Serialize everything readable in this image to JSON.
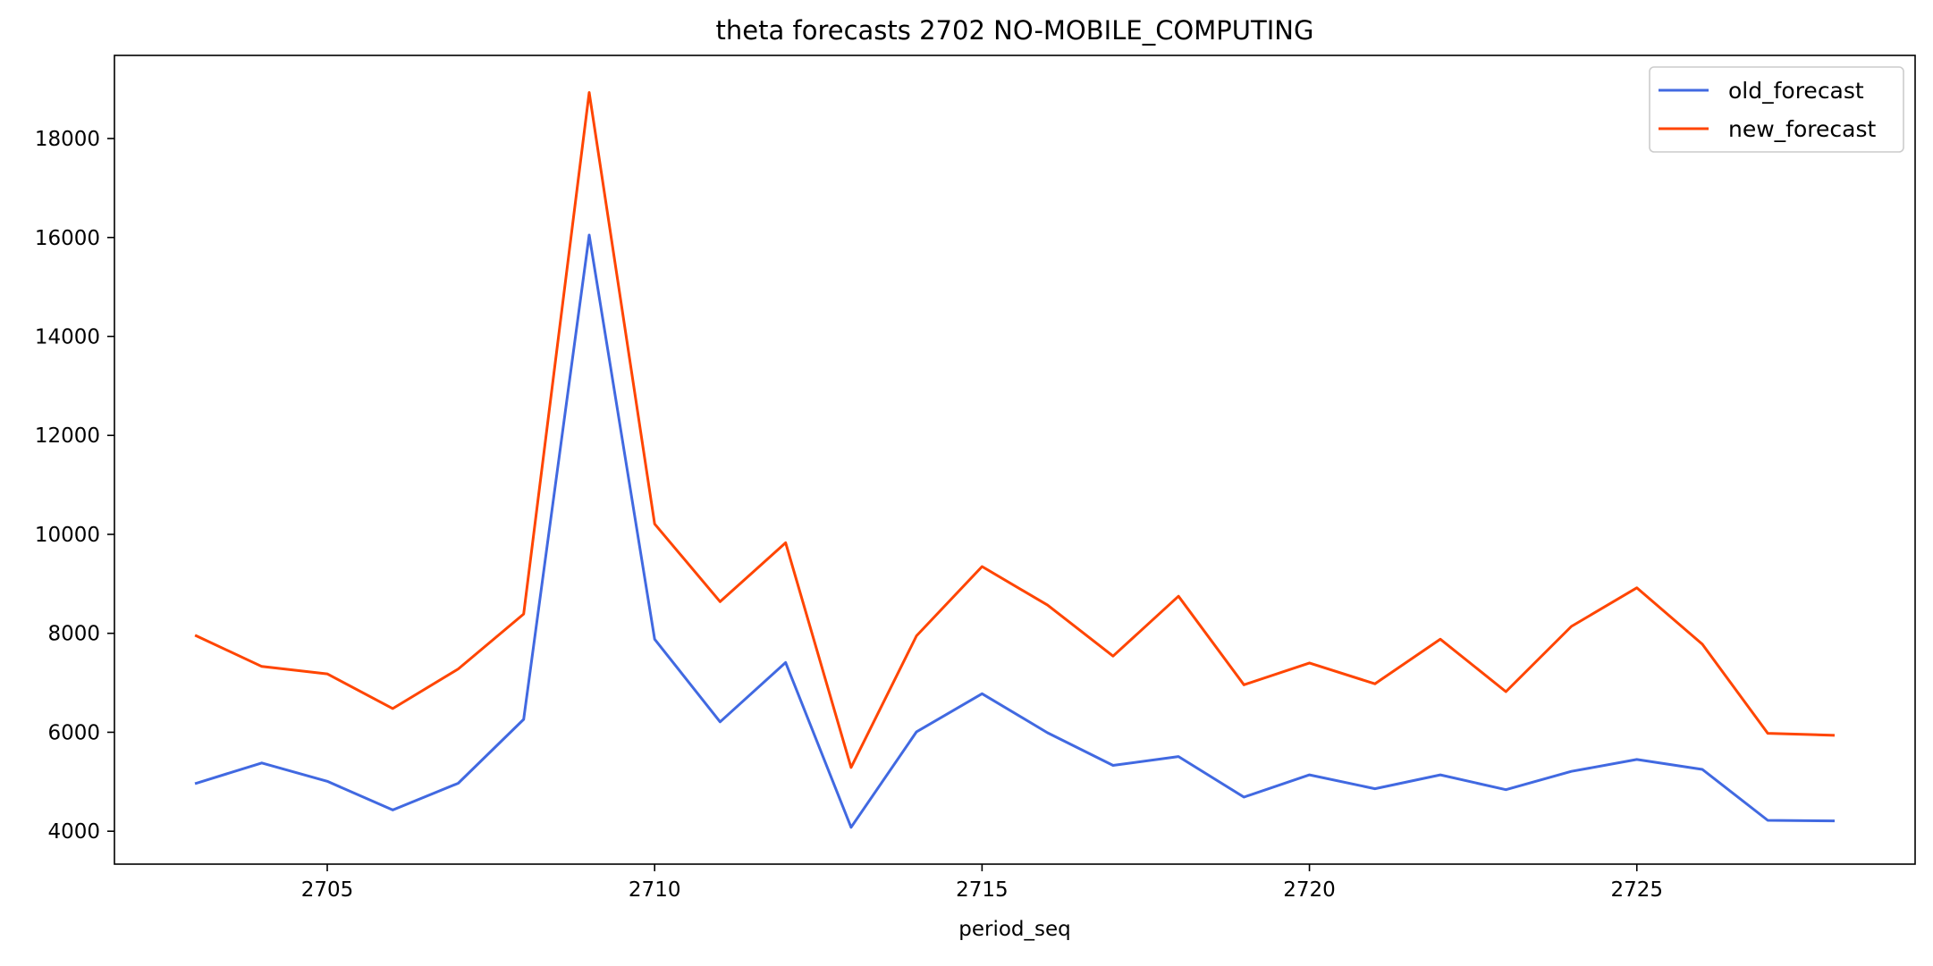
{
  "chart_data": {
    "type": "line",
    "title": "theta forecasts 2702 NO-MOBILE_COMPUTING",
    "xlabel": "period_seq",
    "ylabel": "",
    "x": [
      2703,
      2704,
      2705,
      2706,
      2707,
      2708,
      2709,
      2710,
      2711,
      2712,
      2713,
      2714,
      2715,
      2716,
      2717,
      2718,
      2719,
      2720,
      2721,
      2722,
      2723,
      2724,
      2725,
      2726,
      2727,
      2728
    ],
    "series": [
      {
        "name": "old_forecast",
        "color": "#4169e1",
        "values": [
          4970,
          5380,
          5010,
          4430,
          4970,
          6260,
          16050,
          7880,
          6210,
          7410,
          4080,
          6010,
          6780,
          5990,
          5330,
          5510,
          4690,
          5140,
          4860,
          5140,
          4840,
          5210,
          5450,
          5250,
          4220,
          4210
        ]
      },
      {
        "name": "new_forecast",
        "color": "#ff4500",
        "values": [
          7950,
          7330,
          7180,
          6480,
          7280,
          8390,
          18930,
          10210,
          8640,
          9830,
          5290,
          7950,
          9350,
          8570,
          7540,
          8750,
          6960,
          7400,
          6980,
          7880,
          6820,
          8140,
          8920,
          7780,
          5980,
          5940
        ]
      }
    ],
    "xlim": [
      2701.75,
      2729.25
    ],
    "ylim": [
      3335,
      19680
    ],
    "xticks": [
      2705,
      2710,
      2715,
      2720,
      2725
    ],
    "yticks": [
      4000,
      6000,
      8000,
      10000,
      12000,
      14000,
      16000,
      18000
    ],
    "grid": false,
    "legend_position": "top-right"
  }
}
